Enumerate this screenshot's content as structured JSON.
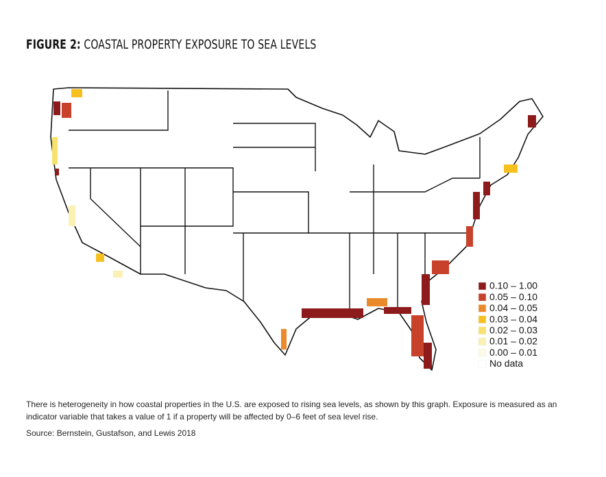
{
  "header": {
    "figure": "FIGURE 2:",
    "title": "COASTAL PROPERTY EXPOSURE TO SEA LEVELS"
  },
  "legend": {
    "items": [
      {
        "label": "0.10 – 1.00",
        "color": "#8e1b1b"
      },
      {
        "label": "0.05 – 0.10",
        "color": "#c8412a"
      },
      {
        "label": "0.04 – 0.05",
        "color": "#ea8a2c"
      },
      {
        "label": "0.03 – 0.04",
        "color": "#f6c01e"
      },
      {
        "label": "0.02 – 0.03",
        "color": "#f8e26e"
      },
      {
        "label": "0.01 – 0.02",
        "color": "#fbf1b4"
      },
      {
        "label": "0.00 – 0.01",
        "color": "#fdfae6"
      },
      {
        "label": "No data",
        "color": "#ffffff"
      }
    ]
  },
  "caption": "There is heterogeneity in how coastal properties in the U.S. are exposed to rising sea levels, as shown by this graph. Exposure is measured as an indicator variable that takes a value of 1 if a property will be affected by 0–6 feet of sea level rise.",
  "source": "Source: Bernstein, Gustafson, and Lewis 2018"
}
